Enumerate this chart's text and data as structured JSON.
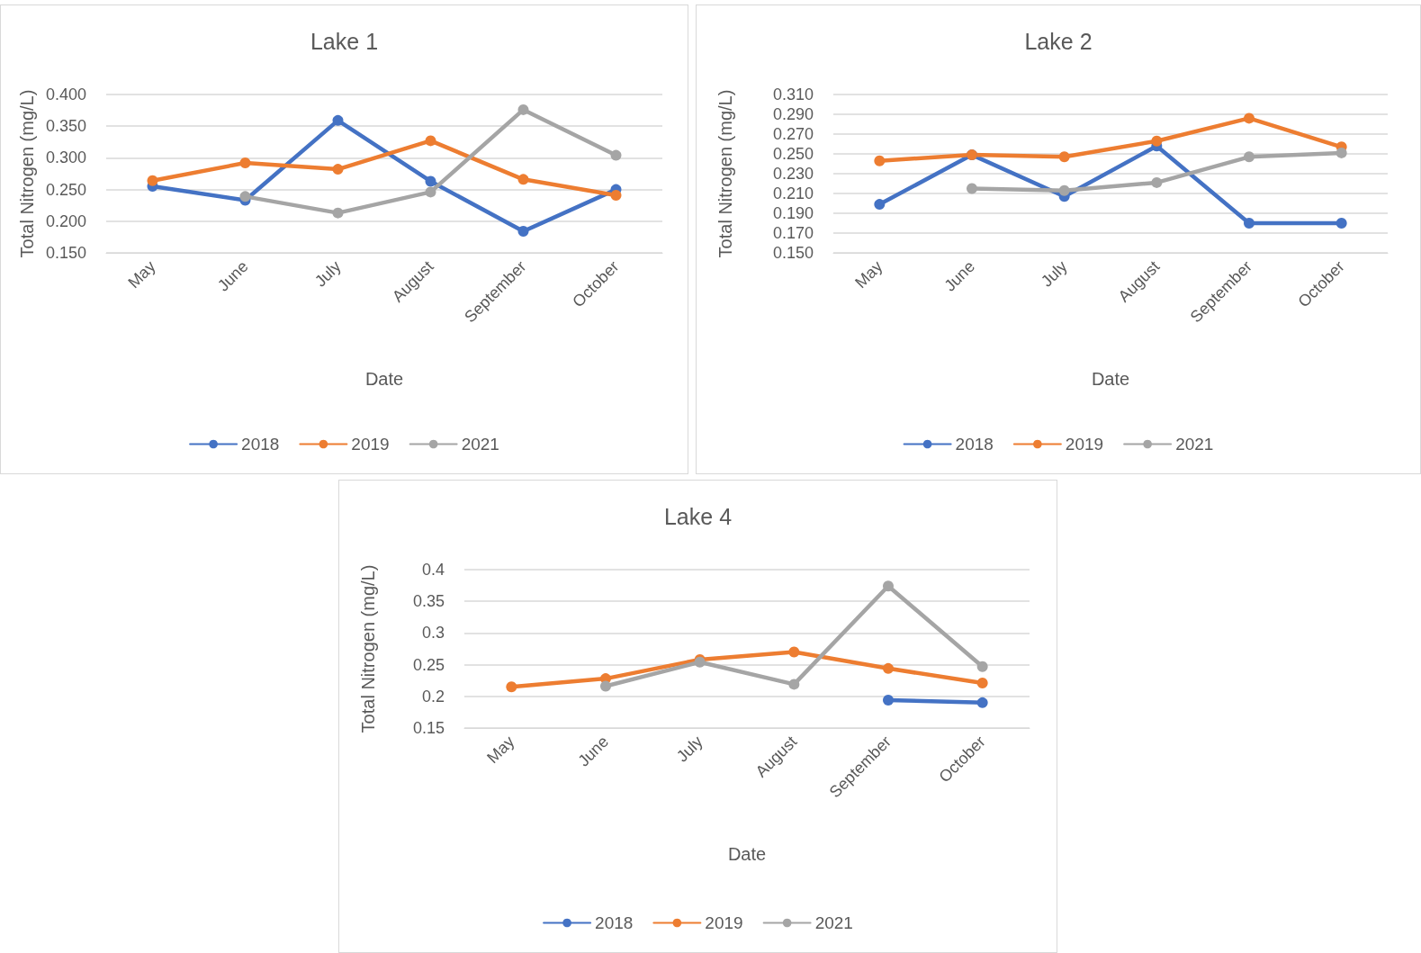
{
  "chart_data": [
    {
      "type": "line",
      "title": "Lake 1",
      "xlabel": "Date",
      "ylabel": "Total Nitrogen (mg/L)",
      "categories": [
        "May",
        "June",
        "July",
        "August",
        "September",
        "October"
      ],
      "series": [
        {
          "name": "2018",
          "color": "#4472c4",
          "values": [
            0.255,
            0.233,
            0.359,
            0.263,
            0.184,
            0.25
          ]
        },
        {
          "name": "2019",
          "color": "#ed7d31",
          "values": [
            0.264,
            0.292,
            0.282,
            0.327,
            0.266,
            0.241
          ]
        },
        {
          "name": "2021",
          "color": "#a5a5a5",
          "values": [
            null,
            0.239,
            0.213,
            0.246,
            0.376,
            0.304
          ]
        }
      ],
      "ylim": [
        0.15,
        0.4
      ],
      "yticks": [
        {
          "value": 0.15,
          "label": "0.150"
        },
        {
          "value": 0.2,
          "label": "0.200"
        },
        {
          "value": 0.25,
          "label": "0.250"
        },
        {
          "value": 0.3,
          "label": "0.300"
        },
        {
          "value": 0.35,
          "label": "0.350"
        },
        {
          "value": 0.4,
          "label": "0.400"
        }
      ],
      "grid": "y",
      "legend": "bottom",
      "marker": "circle",
      "line_style": "solid"
    },
    {
      "type": "line",
      "title": "Lake 2",
      "xlabel": "Date",
      "ylabel": "Total Nitrogen (mg/L)",
      "categories": [
        "May",
        "June",
        "July",
        "August",
        "September",
        "October"
      ],
      "series": [
        {
          "name": "2018",
          "color": "#4472c4",
          "values": [
            0.199,
            0.249,
            0.207,
            0.258,
            0.18,
            0.18
          ]
        },
        {
          "name": "2019",
          "color": "#ed7d31",
          "values": [
            0.243,
            0.249,
            0.247,
            0.263,
            0.286,
            0.257
          ]
        },
        {
          "name": "2021",
          "color": "#a5a5a5",
          "values": [
            null,
            0.215,
            0.213,
            0.221,
            0.247,
            0.251
          ]
        }
      ],
      "ylim": [
        0.15,
        0.31
      ],
      "yticks": [
        {
          "value": 0.15,
          "label": "0.150"
        },
        {
          "value": 0.17,
          "label": "0.170"
        },
        {
          "value": 0.19,
          "label": "0.190"
        },
        {
          "value": 0.21,
          "label": "0.210"
        },
        {
          "value": 0.23,
          "label": "0.230"
        },
        {
          "value": 0.25,
          "label": "0.250"
        },
        {
          "value": 0.27,
          "label": "0.270"
        },
        {
          "value": 0.29,
          "label": "0.290"
        },
        {
          "value": 0.31,
          "label": "0.310"
        }
      ],
      "grid": "y",
      "legend": "bottom",
      "marker": "circle",
      "line_style": "solid"
    },
    {
      "type": "line",
      "title": "Lake 4",
      "xlabel": "Date",
      "ylabel": "Total Nitrogen (mg/L)",
      "categories": [
        "May",
        "June",
        "July",
        "August",
        "September",
        "October"
      ],
      "series": [
        {
          "name": "2018",
          "color": "#4472c4",
          "values": [
            null,
            null,
            null,
            null,
            0.194,
            0.19
          ]
        },
        {
          "name": "2019",
          "color": "#ed7d31",
          "values": [
            0.215,
            0.228,
            0.258,
            0.27,
            0.244,
            0.221
          ]
        },
        {
          "name": "2021",
          "color": "#a5a5a5",
          "values": [
            null,
            0.216,
            0.254,
            0.219,
            0.374,
            0.247
          ]
        }
      ],
      "ylim": [
        0.15,
        0.4
      ],
      "yticks": [
        0.15,
        0.2,
        0.25,
        0.3,
        0.35,
        0.4
      ],
      "grid": "y",
      "legend": "bottom",
      "marker": "circle",
      "line_style": "solid"
    }
  ]
}
